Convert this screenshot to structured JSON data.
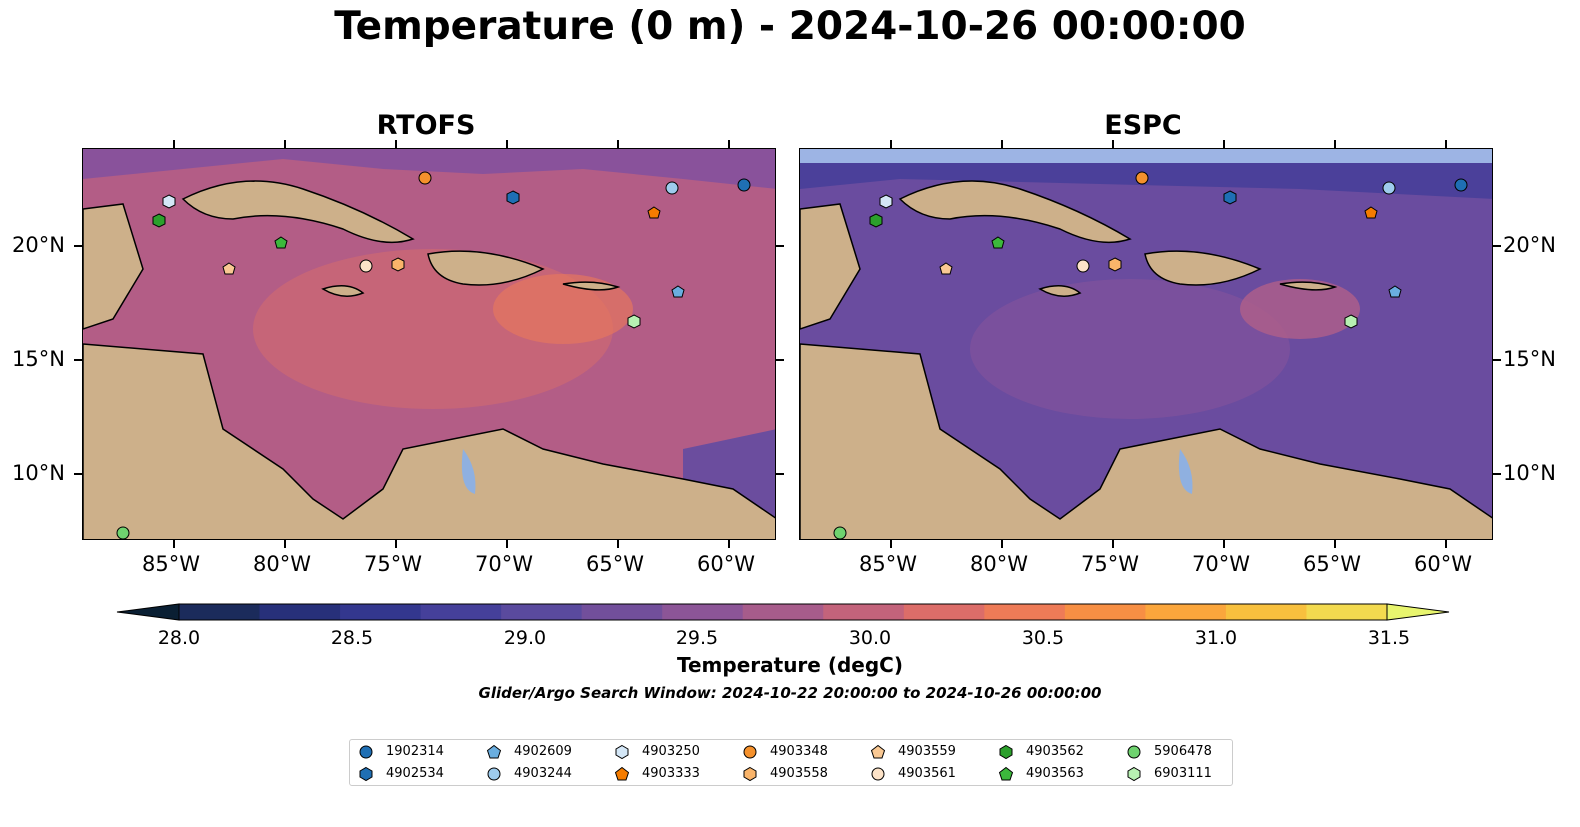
{
  "title": "Temperature (0 m) - 2024-10-26 00:00:00",
  "panels": [
    {
      "title": "RTOFS",
      "tone": "warm"
    },
    {
      "title": "ESPC",
      "tone": "cool"
    }
  ],
  "axes": {
    "lon_ticks": [
      "85°W",
      "80°W",
      "75°W",
      "70°W",
      "65°W",
      "60°W"
    ],
    "lat_ticks": [
      "20°N",
      "15°N",
      "10°N"
    ]
  },
  "colorbar": {
    "title": "Temperature (degC)",
    "ticks": [
      "28.0",
      "28.5",
      "29.0",
      "29.5",
      "30.0",
      "30.5",
      "31.0",
      "31.5"
    ],
    "range": [
      28.0,
      31.5
    ],
    "colors": [
      "#1b2b5b",
      "#27307a",
      "#33378e",
      "#45409a",
      "#5a4a9e",
      "#724f9b",
      "#8c5597",
      "#a75c8b",
      "#c3637b",
      "#dc6d69",
      "#ee7b57",
      "#f78f44",
      "#fba63c",
      "#f8c03e",
      "#f3da4f"
    ],
    "under_color": "#0a1f33",
    "over_color": "#e8f56e"
  },
  "search_window": "Glider/Argo Search Window: 2024-10-22 20:00:00 to 2024-10-26 00:00:00",
  "legend": [
    {
      "id": "1902314",
      "color": "#1f6fb4",
      "shape": "circle"
    },
    {
      "id": "4902534",
      "color": "#1f6fb4",
      "shape": "hexagon"
    },
    {
      "id": "4902609",
      "color": "#6aaee0",
      "shape": "pentagon"
    },
    {
      "id": "4903244",
      "color": "#9ecbed",
      "shape": "circle"
    },
    {
      "id": "4903250",
      "color": "#d4e7f7",
      "shape": "hexagon"
    },
    {
      "id": "4903333",
      "color": "#f57c00",
      "shape": "pentagon"
    },
    {
      "id": "4903348",
      "color": "#f5912c",
      "shape": "circle"
    },
    {
      "id": "4903558",
      "color": "#f9b46a",
      "shape": "hexagon"
    },
    {
      "id": "4903559",
      "color": "#f9c893",
      "shape": "pentagon"
    },
    {
      "id": "4903561",
      "color": "#fde3c8",
      "shape": "circle"
    },
    {
      "id": "4903562",
      "color": "#2ca02c",
      "shape": "hexagon"
    },
    {
      "id": "4903563",
      "color": "#3cb83c",
      "shape": "pentagon"
    },
    {
      "id": "5906478",
      "color": "#6fd36f",
      "shape": "circle"
    },
    {
      "id": "6903111",
      "color": "#b7f0b2",
      "shape": "hexagon"
    }
  ]
}
